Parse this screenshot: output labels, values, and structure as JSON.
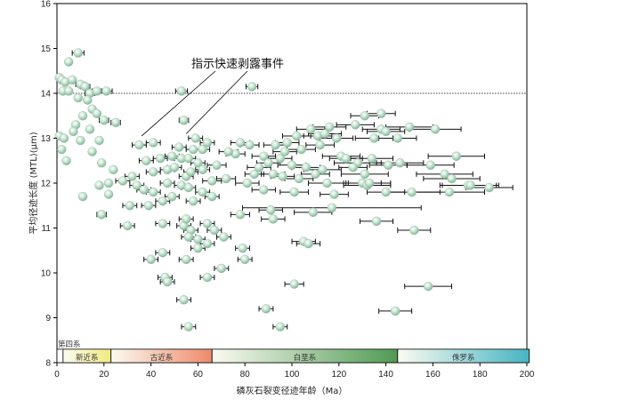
{
  "chart_data": {
    "type": "scatter",
    "xlabel": "磷灰石裂变径迹年龄（Ma）",
    "ylabel": "平均径迹长度 (MTL)(μm)",
    "xlim": [
      0,
      200
    ],
    "ylim": [
      8,
      16
    ],
    "x_ticks": [
      "0",
      "20",
      "40",
      "60",
      "80",
      "100",
      "120",
      "140",
      "160",
      "180",
      "200"
    ],
    "y_ticks": [
      "8",
      "9",
      "10",
      "11",
      "12",
      "13",
      "14",
      "15",
      "16"
    ],
    "reference_line": {
      "y": 14,
      "style": "dotted"
    },
    "annotation": {
      "text": "指示快速剥露事件",
      "targets": [
        {
          "x": 36,
          "y": 12.95
        },
        {
          "x": 55,
          "y": 13.0
        }
      ]
    },
    "periods": [
      {
        "label": "第四系",
        "x_start": 0,
        "x_end": 2.6,
        "color": "#ffffff"
      },
      {
        "label": "新近系",
        "x_start": 2.6,
        "x_end": 23,
        "color": "#f2ea7e"
      },
      {
        "label": "古近系",
        "x_start": 23,
        "x_end": 66,
        "color": "#ee8a6a"
      },
      {
        "label": "白垩系",
        "x_start": 66,
        "x_end": 145,
        "color": "#4f9a52"
      },
      {
        "label": "侏罗系",
        "x_start": 145,
        "x_end": 201,
        "color": "#46b4c2"
      }
    ],
    "legend": "none",
    "grid": false,
    "points": [
      {
        "x": 1,
        "y": 14.35,
        "err": 0
      },
      {
        "x": 2,
        "y": 14.3,
        "err": 0
      },
      {
        "x": 3.5,
        "y": 14.25,
        "err": 0
      },
      {
        "x": 5,
        "y": 14.7,
        "err": 0
      },
      {
        "x": 6.5,
        "y": 14.3,
        "err": 0
      },
      {
        "x": 9,
        "y": 14.9,
        "err": 2.5
      },
      {
        "x": 2.5,
        "y": 14.05,
        "err": 0
      },
      {
        "x": 5,
        "y": 14.05,
        "err": 0
      },
      {
        "x": 10,
        "y": 14.2,
        "err": 2
      },
      {
        "x": 12,
        "y": 14.15,
        "err": 2
      },
      {
        "x": 14,
        "y": 14.0,
        "err": 2
      },
      {
        "x": 17,
        "y": 14.05,
        "err": 2
      },
      {
        "x": 21,
        "y": 14.05,
        "err": 2.5
      },
      {
        "x": 53,
        "y": 14.05,
        "err": 2.5
      },
      {
        "x": 83,
        "y": 14.15,
        "err": 2.5
      },
      {
        "x": 54,
        "y": 13.4,
        "err": 2
      },
      {
        "x": 9,
        "y": 13.9,
        "err": 0
      },
      {
        "x": 13,
        "y": 13.85,
        "err": 0
      },
      {
        "x": 15,
        "y": 13.65,
        "err": 0
      },
      {
        "x": 11,
        "y": 13.5,
        "err": 0
      },
      {
        "x": 8,
        "y": 13.3,
        "err": 0
      },
      {
        "x": 17,
        "y": 13.55,
        "err": 0
      },
      {
        "x": 20,
        "y": 13.4,
        "err": 2
      },
      {
        "x": 25,
        "y": 13.35,
        "err": 2
      },
      {
        "x": 1,
        "y": 13.05,
        "err": 0
      },
      {
        "x": 3,
        "y": 13.0,
        "err": 0
      },
      {
        "x": 7,
        "y": 13.15,
        "err": 0
      },
      {
        "x": 10,
        "y": 12.95,
        "err": 0
      },
      {
        "x": 14,
        "y": 13.2,
        "err": 0
      },
      {
        "x": 18,
        "y": 12.95,
        "err": 0
      },
      {
        "x": 2,
        "y": 12.75,
        "err": 0
      },
      {
        "x": 4,
        "y": 12.5,
        "err": 0
      },
      {
        "x": 15,
        "y": 12.7,
        "err": 0
      },
      {
        "x": 19,
        "y": 12.45,
        "err": 0
      },
      {
        "x": 24,
        "y": 12.3,
        "err": 0
      },
      {
        "x": 11,
        "y": 11.7,
        "err": 0
      },
      {
        "x": 18,
        "y": 11.95,
        "err": 0
      },
      {
        "x": 22,
        "y": 12.0,
        "err": 0
      },
      {
        "x": 22,
        "y": 11.75,
        "err": 0
      },
      {
        "x": 19,
        "y": 11.3,
        "err": 2
      },
      {
        "x": 28,
        "y": 12.05,
        "err": 3
      },
      {
        "x": 32,
        "y": 12.15,
        "err": 3
      },
      {
        "x": 34,
        "y": 11.95,
        "err": 3
      },
      {
        "x": 38,
        "y": 12.5,
        "err": 3
      },
      {
        "x": 41,
        "y": 12.25,
        "err": 3
      },
      {
        "x": 44,
        "y": 12.55,
        "err": 3
      },
      {
        "x": 47,
        "y": 12.3,
        "err": 3
      },
      {
        "x": 50,
        "y": 12.35,
        "err": 3
      },
      {
        "x": 53,
        "y": 12.55,
        "err": 3
      },
      {
        "x": 55,
        "y": 12.15,
        "err": 3
      },
      {
        "x": 57,
        "y": 12.25,
        "err": 3
      },
      {
        "x": 60,
        "y": 12.45,
        "err": 3
      },
      {
        "x": 62,
        "y": 12.75,
        "err": 3
      },
      {
        "x": 64,
        "y": 12.9,
        "err": 3
      },
      {
        "x": 58,
        "y": 12.75,
        "err": 3
      },
      {
        "x": 59,
        "y": 13.0,
        "err": 3
      },
      {
        "x": 35,
        "y": 12.85,
        "err": 3
      },
      {
        "x": 41,
        "y": 12.9,
        "err": 3
      },
      {
        "x": 49,
        "y": 12.6,
        "err": 3
      },
      {
        "x": 52,
        "y": 12.8,
        "err": 3
      },
      {
        "x": 56,
        "y": 12.55,
        "err": 3
      },
      {
        "x": 62,
        "y": 12.3,
        "err": 3
      },
      {
        "x": 47,
        "y": 12.0,
        "err": 3
      },
      {
        "x": 53,
        "y": 11.95,
        "err": 3
      },
      {
        "x": 37,
        "y": 11.85,
        "err": 3
      },
      {
        "x": 41,
        "y": 11.8,
        "err": 3
      },
      {
        "x": 45,
        "y": 11.6,
        "err": 3
      },
      {
        "x": 49,
        "y": 11.7,
        "err": 3
      },
      {
        "x": 56,
        "y": 11.9,
        "err": 3
      },
      {
        "x": 58,
        "y": 11.6,
        "err": 3
      },
      {
        "x": 62,
        "y": 11.8,
        "err": 3
      },
      {
        "x": 66,
        "y": 11.7,
        "err": 3
      },
      {
        "x": 31,
        "y": 11.5,
        "err": 3
      },
      {
        "x": 39,
        "y": 11.5,
        "err": 3
      },
      {
        "x": 45,
        "y": 11.1,
        "err": 3
      },
      {
        "x": 54,
        "y": 11.05,
        "err": 3
      },
      {
        "x": 57,
        "y": 10.95,
        "err": 3
      },
      {
        "x": 60,
        "y": 10.75,
        "err": 3
      },
      {
        "x": 64,
        "y": 11.1,
        "err": 3
      },
      {
        "x": 67,
        "y": 10.95,
        "err": 3
      },
      {
        "x": 30,
        "y": 11.05,
        "err": 3
      },
      {
        "x": 55,
        "y": 11.2,
        "err": 3
      },
      {
        "x": 56,
        "y": 10.8,
        "err": 3
      },
      {
        "x": 60,
        "y": 10.55,
        "err": 3
      },
      {
        "x": 64,
        "y": 10.65,
        "err": 3
      },
      {
        "x": 71,
        "y": 10.8,
        "err": 3
      },
      {
        "x": 45,
        "y": 10.45,
        "err": 3
      },
      {
        "x": 40,
        "y": 10.3,
        "err": 3
      },
      {
        "x": 55,
        "y": 10.3,
        "err": 3
      },
      {
        "x": 79,
        "y": 10.55,
        "err": 3
      },
      {
        "x": 80,
        "y": 10.3,
        "err": 3
      },
      {
        "x": 70,
        "y": 10.1,
        "err": 3
      },
      {
        "x": 46,
        "y": 9.9,
        "err": 3
      },
      {
        "x": 47,
        "y": 9.8,
        "err": 3
      },
      {
        "x": 64,
        "y": 9.9,
        "err": 3
      },
      {
        "x": 54,
        "y": 9.4,
        "err": 3
      },
      {
        "x": 56,
        "y": 8.8,
        "err": 3
      },
      {
        "x": 89,
        "y": 9.2,
        "err": 3
      },
      {
        "x": 95,
        "y": 8.8,
        "err": 3
      },
      {
        "x": 101,
        "y": 9.75,
        "err": 4
      },
      {
        "x": 144,
        "y": 9.15,
        "err": 7
      },
      {
        "x": 158,
        "y": 9.7,
        "err": 10
      },
      {
        "x": 105,
        "y": 10.7,
        "err": 5
      },
      {
        "x": 107,
        "y": 10.65,
        "err": 5
      },
      {
        "x": 78,
        "y": 11.3,
        "err": 4
      },
      {
        "x": 91,
        "y": 11.4,
        "err": 5
      },
      {
        "x": 92,
        "y": 11.2,
        "err": 5
      },
      {
        "x": 109,
        "y": 11.35,
        "err": 8
      },
      {
        "x": 117,
        "y": 11.45,
        "err": 38
      },
      {
        "x": 136,
        "y": 11.15,
        "err": 7
      },
      {
        "x": 152,
        "y": 10.95,
        "err": 7
      },
      {
        "x": 88,
        "y": 11.85,
        "err": 5
      },
      {
        "x": 101,
        "y": 11.8,
        "err": 6
      },
      {
        "x": 118,
        "y": 11.75,
        "err": 6
      },
      {
        "x": 130,
        "y": 12.0,
        "err": 8
      },
      {
        "x": 132,
        "y": 11.95,
        "err": 10
      },
      {
        "x": 140,
        "y": 11.8,
        "err": 8
      },
      {
        "x": 151,
        "y": 11.8,
        "err": 12
      },
      {
        "x": 167,
        "y": 11.8,
        "err": 15
      },
      {
        "x": 175,
        "y": 11.95,
        "err": 12
      },
      {
        "x": 176,
        "y": 11.95,
        "err": 12
      },
      {
        "x": 184,
        "y": 11.9,
        "err": 10
      },
      {
        "x": 72,
        "y": 12.1,
        "err": 4
      },
      {
        "x": 81,
        "y": 12.0,
        "err": 5
      },
      {
        "x": 86,
        "y": 12.35,
        "err": 5
      },
      {
        "x": 92,
        "y": 12.2,
        "err": 5
      },
      {
        "x": 95,
        "y": 12.55,
        "err": 5
      },
      {
        "x": 97,
        "y": 12.7,
        "err": 5
      },
      {
        "x": 100,
        "y": 12.4,
        "err": 6
      },
      {
        "x": 103,
        "y": 12.1,
        "err": 6
      },
      {
        "x": 106,
        "y": 12.35,
        "err": 6
      },
      {
        "x": 110,
        "y": 12.2,
        "err": 6
      },
      {
        "x": 113,
        "y": 12.3,
        "err": 8
      },
      {
        "x": 115,
        "y": 12.0,
        "err": 8
      },
      {
        "x": 121,
        "y": 12.6,
        "err": 8
      },
      {
        "x": 128,
        "y": 12.45,
        "err": 10
      },
      {
        "x": 131,
        "y": 12.2,
        "err": 10
      },
      {
        "x": 134,
        "y": 12.55,
        "err": 9
      },
      {
        "x": 141,
        "y": 12.4,
        "err": 8
      },
      {
        "x": 146,
        "y": 12.45,
        "err": 10
      },
      {
        "x": 159,
        "y": 12.4,
        "err": 10
      },
      {
        "x": 165,
        "y": 12.2,
        "err": 12
      },
      {
        "x": 170,
        "y": 12.6,
        "err": 12
      },
      {
        "x": 168,
        "y": 12.1,
        "err": 12
      },
      {
        "x": 76,
        "y": 12.65,
        "err": 4
      },
      {
        "x": 82,
        "y": 12.85,
        "err": 4
      },
      {
        "x": 88,
        "y": 12.6,
        "err": 5
      },
      {
        "x": 93,
        "y": 12.85,
        "err": 5
      },
      {
        "x": 98,
        "y": 12.9,
        "err": 5
      },
      {
        "x": 102,
        "y": 13.05,
        "err": 6
      },
      {
        "x": 108,
        "y": 13.2,
        "err": 6
      },
      {
        "x": 111,
        "y": 13.05,
        "err": 6
      },
      {
        "x": 114,
        "y": 13.1,
        "err": 7
      },
      {
        "x": 116,
        "y": 13.25,
        "err": 7
      },
      {
        "x": 119,
        "y": 13.0,
        "err": 7
      },
      {
        "x": 127,
        "y": 13.3,
        "err": 8
      },
      {
        "x": 135,
        "y": 13.0,
        "err": 8
      },
      {
        "x": 138,
        "y": 13.2,
        "err": 8
      },
      {
        "x": 140,
        "y": 13.15,
        "err": 8
      },
      {
        "x": 145,
        "y": 13.0,
        "err": 8
      },
      {
        "x": 150,
        "y": 13.25,
        "err": 10
      },
      {
        "x": 161,
        "y": 13.2,
        "err": 11
      },
      {
        "x": 131,
        "y": 13.5,
        "err": 6
      },
      {
        "x": 138,
        "y": 13.55,
        "err": 6
      },
      {
        "x": 126,
        "y": 12.35,
        "err": 6
      },
      {
        "x": 68,
        "y": 12.4,
        "err": 4
      },
      {
        "x": 73,
        "y": 12.7,
        "err": 4
      },
      {
        "x": 78,
        "y": 12.9,
        "err": 4
      },
      {
        "x": 84,
        "y": 12.2,
        "err": 4
      },
      {
        "x": 90,
        "y": 12.45,
        "err": 5
      },
      {
        "x": 96,
        "y": 12.15,
        "err": 5
      },
      {
        "x": 104,
        "y": 12.75,
        "err": 6
      },
      {
        "x": 112,
        "y": 12.85,
        "err": 6
      },
      {
        "x": 123,
        "y": 12.55,
        "err": 7
      },
      {
        "x": 133,
        "y": 12.0,
        "err": 9
      },
      {
        "x": 66,
        "y": 12.05,
        "err": 4
      }
    ]
  }
}
